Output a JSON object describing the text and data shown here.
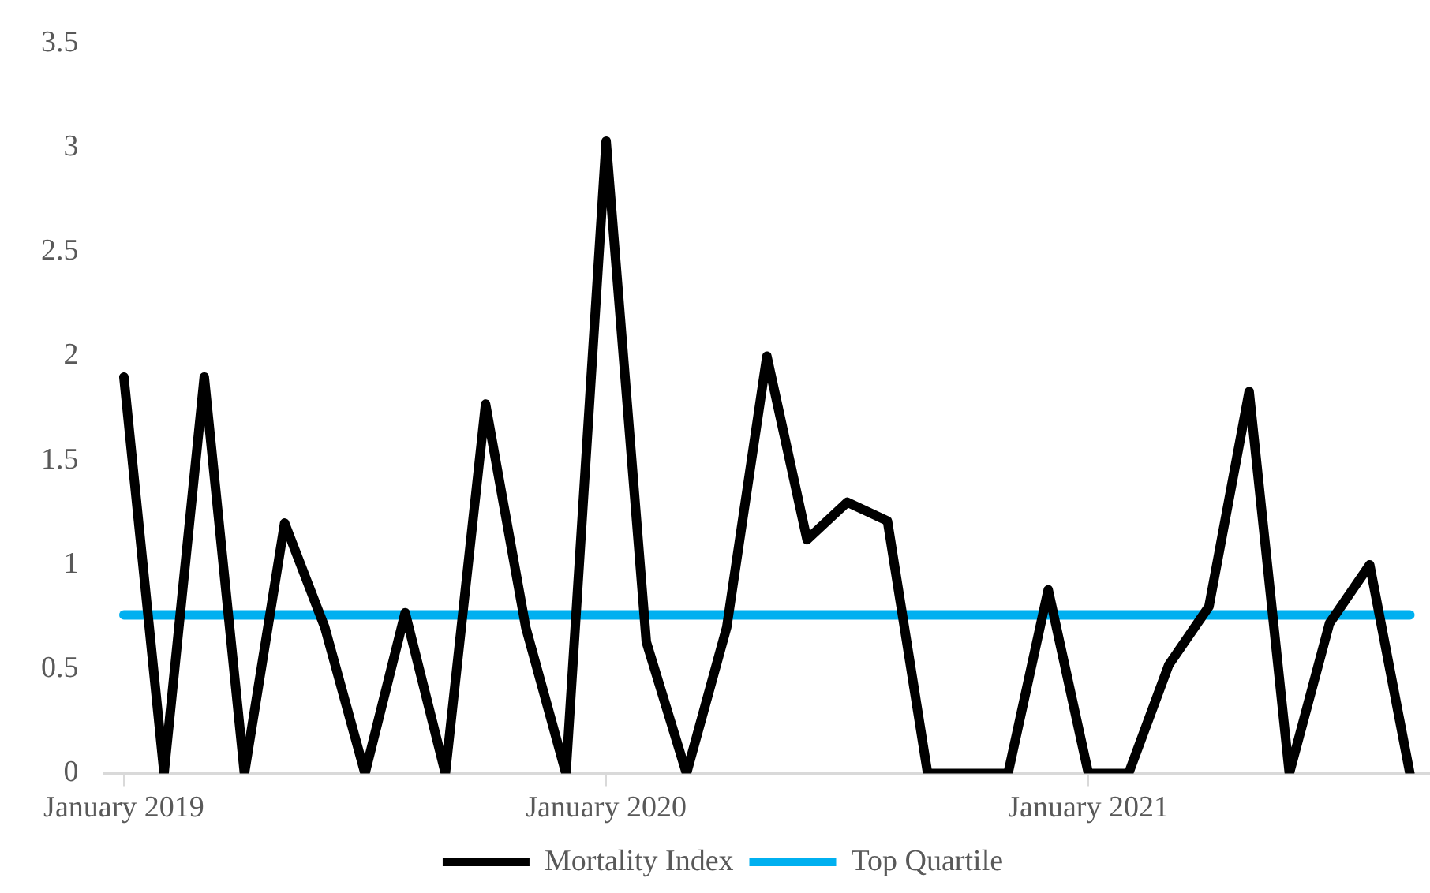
{
  "chart_data": {
    "type": "line",
    "categories": [
      "January 2019",
      null,
      null,
      null,
      null,
      null,
      null,
      null,
      null,
      null,
      null,
      null,
      "January 2020",
      null,
      null,
      null,
      null,
      null,
      null,
      null,
      null,
      null,
      null,
      null,
      "January 2021",
      null,
      null,
      null,
      null,
      null,
      null,
      null,
      null
    ],
    "series": [
      {
        "name": "Mortality Index",
        "color": "#000000",
        "values": [
          1.9,
          0,
          1.9,
          0,
          1.2,
          0.7,
          0,
          0.77,
          0,
          1.77,
          0.7,
          0,
          3.03,
          0.63,
          0,
          0.7,
          2.0,
          1.12,
          1.3,
          1.21,
          0,
          0,
          0,
          0.88,
          0,
          0,
          0.52,
          0.8,
          1.83,
          0,
          0.72,
          1.0,
          0
        ]
      },
      {
        "name": "Top Quartile",
        "color": "#00b0f0",
        "values": [
          0.76,
          0.76,
          0.76,
          0.76,
          0.76,
          0.76,
          0.76,
          0.76,
          0.76,
          0.76,
          0.76,
          0.76,
          0.76,
          0.76,
          0.76,
          0.76,
          0.76,
          0.76,
          0.76,
          0.76,
          0.76,
          0.76,
          0.76,
          0.76,
          0.76,
          0.76,
          0.76,
          0.76,
          0.76,
          0.76,
          0.76,
          0.76,
          0.76
        ]
      }
    ],
    "ylim": [
      0,
      3.5
    ],
    "yticks": [
      0,
      0.5,
      1,
      1.5,
      2,
      2.5,
      3,
      3.5
    ],
    "grid": false,
    "legend": "bottom",
    "marker": "none",
    "line_style": "solid"
  }
}
